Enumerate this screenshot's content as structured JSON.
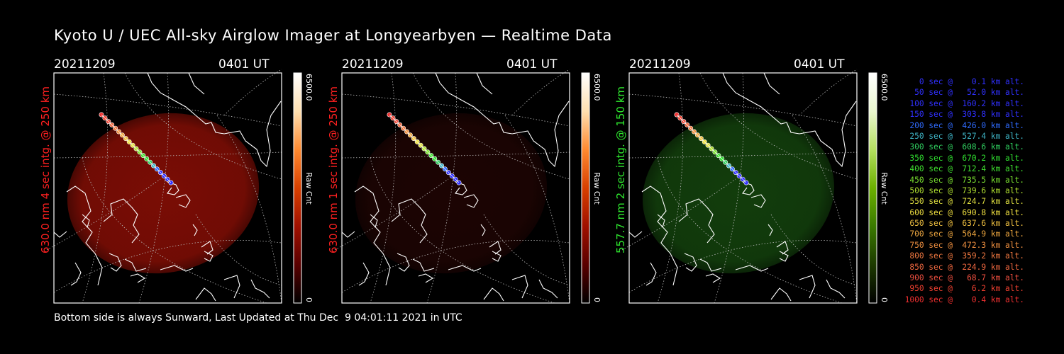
{
  "title": "Kyoto U / UEC All-sky Airglow Imager at Longyearbyen — Realtime Data",
  "panels": [
    {
      "date": "20211209",
      "time": "0401 UT",
      "ylabel": "630.0 nm  4 sec intg. @ 250 km",
      "label_color": "#ff2020",
      "image_color": "#7a0d05",
      "colorbar": [
        "#000000",
        "#5a0000",
        "#a01000",
        "#d84000",
        "#ff8a30",
        "#ffe0b0",
        "#ffffff"
      ],
      "cb_max": "6500.0",
      "cb_min": "0",
      "cb_unit": "Raw Cnt"
    },
    {
      "date": "20211209",
      "time": "0401 UT",
      "ylabel": "630.0 nm  1 sec intg. @ 250 km",
      "label_color": "#ff2020",
      "image_color": "#1c0403",
      "colorbar": [
        "#000000",
        "#5a0000",
        "#a01000",
        "#d84000",
        "#ff8a30",
        "#ffe0b0",
        "#ffffff"
      ],
      "cb_max": "6500.0",
      "cb_min": "0",
      "cb_unit": "Raw Cnt"
    },
    {
      "date": "20211209",
      "time": "0401 UT",
      "ylabel": "557.7 nm  2 sec intg. @ 150 km",
      "label_color": "#2ee82e",
      "image_color": "#123d0c",
      "colorbar": [
        "#000000",
        "#1d3a00",
        "#3a7a00",
        "#6cb000",
        "#b5e060",
        "#eaf7cf",
        "#ffffff"
      ],
      "cb_max": "6500.0",
      "cb_min": "0",
      "cb_unit": "Raw Cnt"
    }
  ],
  "legend": [
    {
      "text": "0 sec @    0.1 km alt.",
      "color": "#3030ff"
    },
    {
      "text": "50 sec @   52.0 km alt.",
      "color": "#3030ff"
    },
    {
      "text": "100 sec @  160.2 km alt.",
      "color": "#3030ff"
    },
    {
      "text": "150 sec @  303.8 km alt.",
      "color": "#3030ff"
    },
    {
      "text": "200 sec @  426.0 km alt.",
      "color": "#2f6bff"
    },
    {
      "text": "250 sec @  527.4 km alt.",
      "color": "#3fb6c8"
    },
    {
      "text": "300 sec @  608.6 km alt.",
      "color": "#30d060"
    },
    {
      "text": "350 sec @  670.2 km alt.",
      "color": "#30e030"
    },
    {
      "text": "400 sec @  712.4 km alt.",
      "color": "#40e030"
    },
    {
      "text": "450 sec @  735.5 km alt.",
      "color": "#7ae030"
    },
    {
      "text": "500 sec @  739.6 km alt.",
      "color": "#b0e030"
    },
    {
      "text": "550 sec @  724.7 km alt.",
      "color": "#e0e040"
    },
    {
      "text": "600 sec @  690.8 km alt.",
      "color": "#f0e040"
    },
    {
      "text": "650 sec @  637.6 km alt.",
      "color": "#f0c040"
    },
    {
      "text": "700 sec @  564.9 km alt.",
      "color": "#f0a840"
    },
    {
      "text": "750 sec @  472.3 km alt.",
      "color": "#f09040"
    },
    {
      "text": "800 sec @  359.2 km alt.",
      "color": "#f07840"
    },
    {
      "text": "850 sec @  224.9 km alt.",
      "color": "#f06840"
    },
    {
      "text": "900 sec @   68.7 km alt.",
      "color": "#f05040"
    },
    {
      "text": "950 sec @    6.2 km alt.",
      "color": "#f04030"
    },
    {
      "text": "1000 sec @    0.4 km alt.",
      "color": "#f03030"
    }
  ],
  "footer": "Bottom side is always Sunward, Last Updated at Thu Dec  9 04:01:11 2021 in UTC"
}
